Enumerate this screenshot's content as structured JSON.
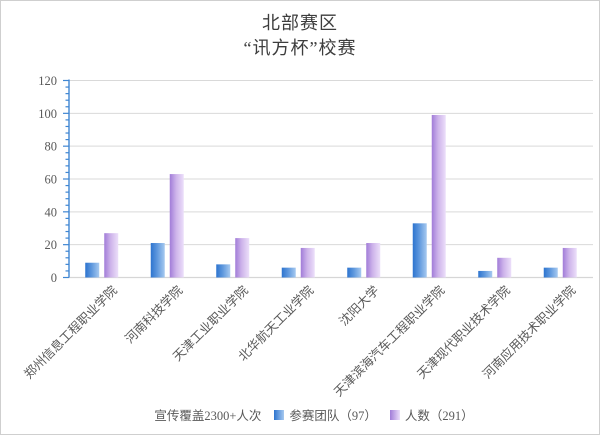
{
  "title": {
    "line1": "北部赛区",
    "line2": "“讯方杯”校赛"
  },
  "footnote": "宣传覆盖2300+人次",
  "chart_data": {
    "type": "bar",
    "title": "北部赛区 “讯方杯”校赛",
    "categories": [
      "郑州信息工程职业学院",
      "河南科技学院",
      "天津工业职业学院",
      "北华航天工业学院",
      "沈阳大学",
      "天津滨海汽车工程职业学院",
      "天津现代职业技术学院",
      "河南应用技术职业学院"
    ],
    "series": [
      {
        "name": "参赛团队（97）",
        "values": [
          9,
          21,
          8,
          6,
          6,
          33,
          4,
          6
        ],
        "gradient": [
          "#2d74cf",
          "#5d97dd",
          "#a6c9f0"
        ]
      },
      {
        "name": "人数（291）",
        "values": [
          27,
          63,
          24,
          18,
          21,
          99,
          12,
          18
        ],
        "gradient": [
          "#a17cd8",
          "#cdb3ea",
          "#ecdffa"
        ]
      }
    ],
    "xlabel": "",
    "ylabel": "",
    "ylim": [
      0,
      120
    ],
    "ytick_step": 20,
    "yminor_step": 4,
    "grid": true,
    "legend_position": "bottom"
  },
  "colors": {
    "axis_blue": "#3f86d2",
    "gridline": "#d9d9d9",
    "x_axis_line": "#d6d6d6",
    "tick_text": "#595959",
    "title_text": "#3d3d3d",
    "border": "#cfcfcf"
  }
}
